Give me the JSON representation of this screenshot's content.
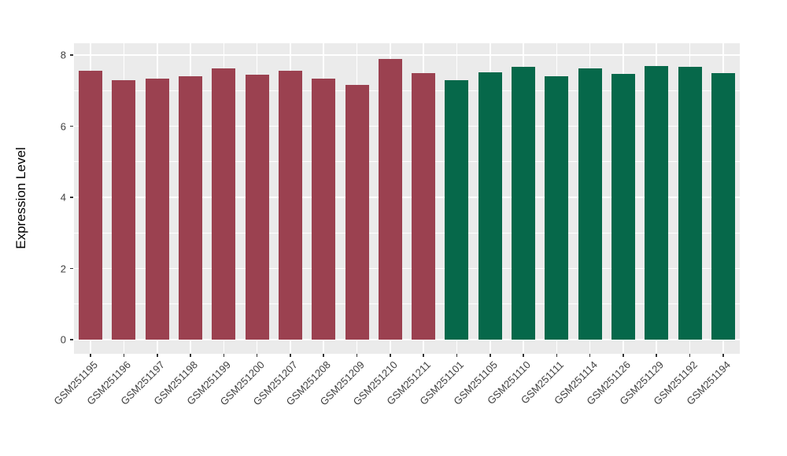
{
  "chart_data": {
    "type": "bar",
    "title": "",
    "xlabel": "",
    "ylabel": "Expression Level",
    "ylim": [
      0,
      8.35
    ],
    "yticks": [
      0,
      2,
      4,
      6,
      8
    ],
    "minor_yticks": [
      1,
      3,
      5,
      7
    ],
    "grid": "major and minor horizontal white lines plus vertical white line per category on gray panel",
    "legend_position": "none",
    "categories": [
      "GSM251195",
      "GSM251196",
      "GSM251197",
      "GSM251198",
      "GSM251199",
      "GSM251200",
      "GSM251207",
      "GSM251208",
      "GSM251209",
      "GSM251210",
      "GSM251211",
      "GSM251101",
      "GSM251105",
      "GSM251110",
      "GSM251111",
      "GSM251114",
      "GSM251126",
      "GSM251129",
      "GSM251192",
      "GSM251194"
    ],
    "values": [
      7.55,
      7.3,
      7.33,
      7.41,
      7.63,
      7.44,
      7.55,
      7.33,
      7.17,
      7.88,
      7.49,
      7.3,
      7.51,
      7.67,
      7.41,
      7.63,
      7.47,
      7.7,
      7.67,
      7.5
    ],
    "bar_colors": [
      "#9B4150",
      "#9B4150",
      "#9B4150",
      "#9B4150",
      "#9B4150",
      "#9B4150",
      "#9B4150",
      "#9B4150",
      "#9B4150",
      "#9B4150",
      "#9B4150",
      "#06684A",
      "#06684A",
      "#06684A",
      "#06684A",
      "#06684A",
      "#06684A",
      "#06684A",
      "#06684A",
      "#06684A"
    ],
    "groups": [
      {
        "name": "maroon-group",
        "color": "#9B4150",
        "first": "GSM251195",
        "last": "GSM251211",
        "count": 11
      },
      {
        "name": "green-group",
        "color": "#06684A",
        "first": "GSM251101",
        "last": "GSM251194",
        "count": 9
      }
    ]
  },
  "style_colors": {
    "panel_background": "#EBEBEB",
    "gridline": "#FFFFFF",
    "tick_mark": "#333333",
    "tick_text": "#404040",
    "axis_title_text": "#000000",
    "page_background": "#FFFFFF"
  }
}
